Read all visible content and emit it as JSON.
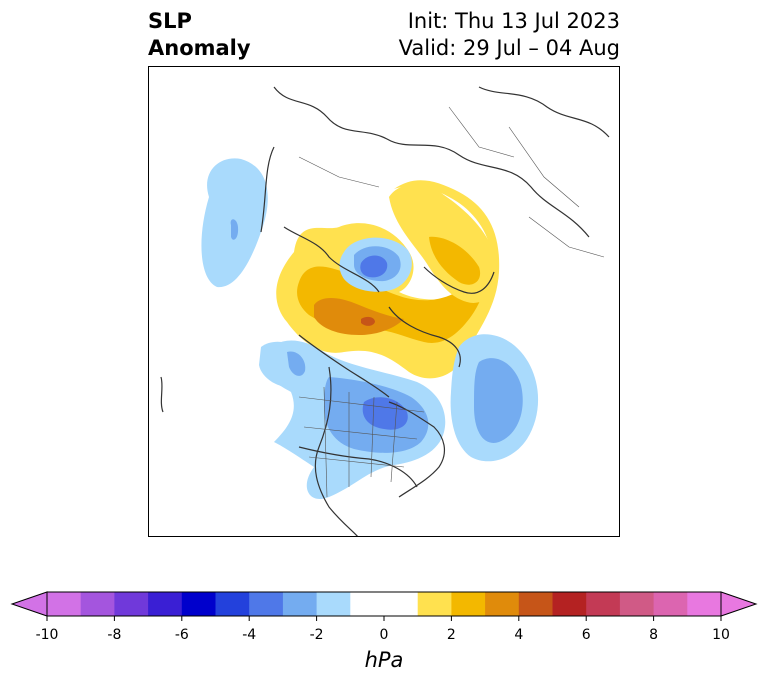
{
  "title": {
    "left_line1": "SLP",
    "left_line2": "Anomaly",
    "right_line1": "Init: Thu 13 Jul 2023",
    "right_line2": "Valid: 29 Jul – 04 Aug"
  },
  "colorbar": {
    "unit": "hPa",
    "tick_labels": [
      "-10",
      "-8",
      "-6",
      "-4",
      "-2",
      "0",
      "2",
      "4",
      "6",
      "8",
      "10"
    ],
    "colors": [
      "#d272e6",
      "#a455de",
      "#7039da",
      "#3a1fd4",
      "#0000cc",
      "#2341dc",
      "#4f78e8",
      "#74acf0",
      "#a9dafc",
      "#ffffff",
      "#ffffff",
      "#ffe14f",
      "#f3b800",
      "#e08b0b",
      "#c65518",
      "#b42222",
      "#c33a55",
      "#d05a86",
      "#dc65b0",
      "#e878e0"
    ],
    "extend_low_color": "#d272e6",
    "extend_high_color": "#e878e0"
  },
  "map": {
    "anomaly_colors": {
      "neg1": "#a9dafc",
      "neg2": "#74acf0",
      "neg3": "#4f78e8",
      "pos1": "#ffe14f",
      "pos2": "#f3b800",
      "pos3": "#e08b0b",
      "pos4": "#c65518"
    }
  }
}
